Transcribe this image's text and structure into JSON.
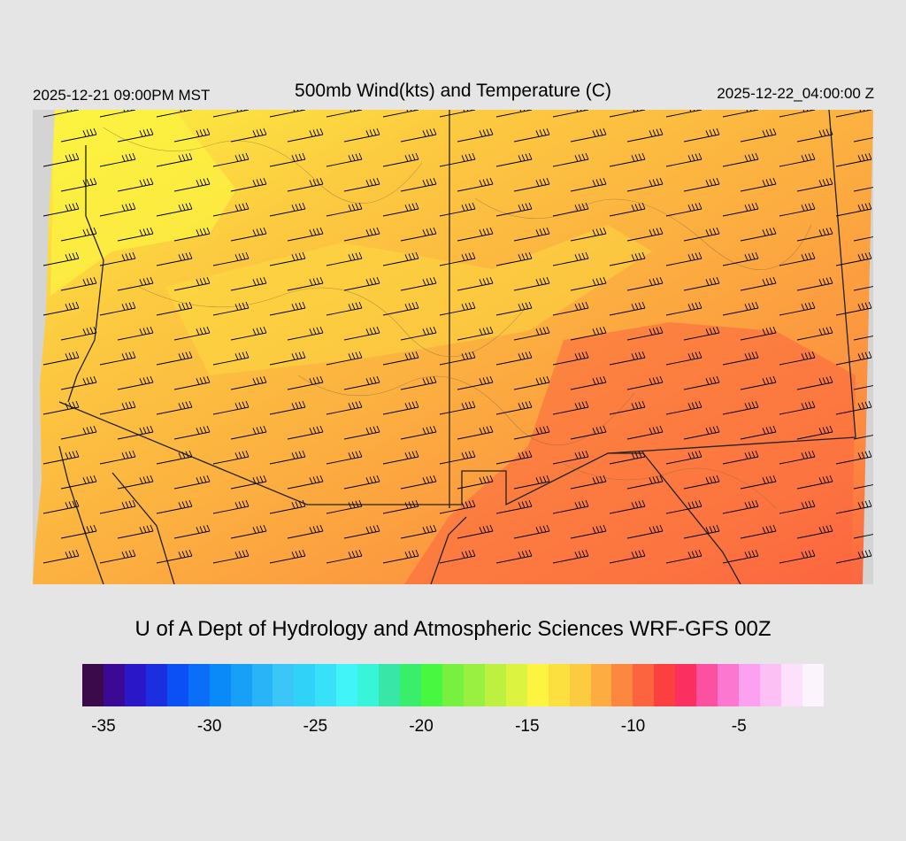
{
  "header": {
    "local_time": "2025-12-21 09:00PM MST",
    "title": "500mb Wind(kts) and Temperature (C)",
    "valid_time": "2025-12-22_04:00:00 Z"
  },
  "footer": {
    "credit": "U of A Dept of Hydrology and Atmospheric Sciences WRF-GFS 00Z"
  },
  "colorbar": {
    "colors": [
      "#3a0a4a",
      "#3b0a95",
      "#2a18c8",
      "#1c2fe0",
      "#0a50f5",
      "#0a6ef8",
      "#0a8af8",
      "#18a0f8",
      "#2ab4f8",
      "#3cc6f8",
      "#30d2f8",
      "#38e0f8",
      "#40f4f8",
      "#38f4d8",
      "#38e6a8",
      "#38ee6a",
      "#48f840",
      "#78f040",
      "#9af040",
      "#bef040",
      "#dcf440",
      "#fcf440",
      "#fce040",
      "#fccc40",
      "#fcac40",
      "#fc8840",
      "#fc6440",
      "#fc4040",
      "#fc3060",
      "#fc50a0",
      "#fc78d0",
      "#fca0f0",
      "#fcc0f4",
      "#fce0fc",
      "#fcf4fc"
    ],
    "tick_labels": [
      "-35",
      "-30",
      "-25",
      "-20",
      "-15",
      "-10",
      "-5"
    ],
    "tick_values": [
      -35,
      -30,
      -25,
      -20,
      -15,
      -10,
      -5
    ],
    "min": -36,
    "max": -1
  },
  "map": {
    "field": "500mb temperature",
    "temperature_range_c": [
      -16,
      -6
    ],
    "wind_direction": "west-southwesterly",
    "wind_speed_kts": [
      40,
      60
    ]
  }
}
